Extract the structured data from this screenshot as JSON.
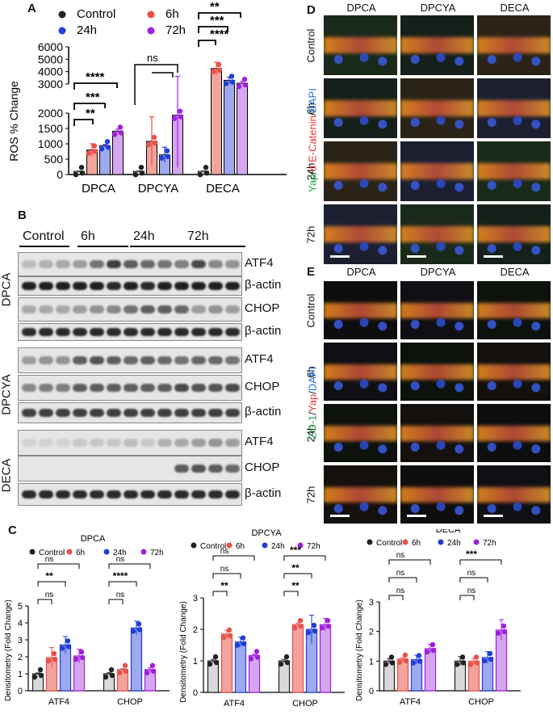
{
  "figure": {
    "panel_letters": {
      "a": "A",
      "b": "B",
      "c": "C",
      "d": "D",
      "e": "E"
    }
  },
  "panel_a": {
    "legend": [
      "Control",
      "6h",
      "24h",
      "72h"
    ],
    "ylabel": "ROS % Change",
    "groups": [
      "DPCA",
      "DPCYA",
      "DECA"
    ],
    "sig": {
      "dpca": [
        "**",
        "***",
        "****"
      ],
      "dpcya": [
        "ns"
      ],
      "deca": [
        "****",
        "***",
        "**"
      ]
    }
  },
  "panel_b": {
    "time_labels": [
      "Control",
      "6h",
      "24h",
      "72h"
    ],
    "row_labels": [
      "ATF4",
      "β-actin",
      "CHOP",
      "β-actin",
      "ATF4",
      "CHOP",
      "β-actin",
      "ATF4",
      "CHOP",
      "β-actin"
    ],
    "group_labels": [
      "DPCA",
      "DPCYA",
      "DECA"
    ]
  },
  "panel_c": {
    "titles": [
      "DPCA",
      "DPCYA",
      "DECA"
    ],
    "legend": [
      "Control",
      "6h",
      "24h",
      "72h"
    ],
    "ylabel": "Densitometry (Fold Change)",
    "sig": {
      "dpca": {
        "atf4": [
          "ns",
          "**",
          "ns"
        ],
        "chop": [
          "ns",
          "****",
          "ns"
        ]
      },
      "dpcya": {
        "atf4": [
          "**",
          "ns",
          "ns"
        ],
        "chop": [
          "**",
          "**",
          "***"
        ]
      },
      "deca": {
        "atf4": [
          "ns",
          "ns",
          "ns"
        ],
        "chop": [
          "ns",
          "ns",
          "***"
        ]
      }
    }
  },
  "panel_d": {
    "columns": [
      "DPCA",
      "DPCYA",
      "DECA"
    ],
    "rows": [
      "Control",
      "6h",
      "24h",
      "72h"
    ],
    "stain_label": [
      "Yap",
      "/",
      "α E-Catenin",
      "/",
      "DAPI"
    ],
    "stain_colors": [
      "#1aa34a",
      "#222222",
      "#e53935",
      "#222222",
      "#1e6fd9"
    ]
  },
  "panel_e": {
    "columns": [
      "DPCA",
      "DPCYA",
      "DECA"
    ],
    "rows": [
      "Control",
      "6h",
      "24h",
      "72h"
    ],
    "stain_label": [
      "ZO-1",
      "/",
      "Yap",
      "/",
      "DAPI"
    ],
    "stain_colors": [
      "#1aa34a",
      "#222222",
      "#e53935",
      "#222222",
      "#1e6fd9"
    ]
  },
  "colors": {
    "control": "#222222",
    "h6": "#e8504a",
    "h24": "#1f3fd6",
    "h72": "#a020e0",
    "bar_fill_control": "#d9d9d9",
    "bar_fill_6h": "#f2a39c",
    "bar_fill_24h": "#9ea9f0",
    "bar_fill_72h": "#d6a6f0"
  },
  "chart_data": [
    {
      "id": "A",
      "type": "bar",
      "categories": [
        "DPCA",
        "DPCYA",
        "DECA"
      ],
      "ylabel": "ROS % Change",
      "y_axis": "broken",
      "y_ticks_lower": [
        0,
        500,
        1000,
        1500,
        2000
      ],
      "y_ticks_upper": [
        3000,
        4000,
        5000,
        6000
      ],
      "series": [
        {
          "name": "Control",
          "values": [
            100,
            100,
            100
          ],
          "err": [
            10,
            10,
            10
          ]
        },
        {
          "name": "6h",
          "values": [
            800,
            1080,
            4250
          ],
          "err": [
            200,
            800,
            500
          ]
        },
        {
          "name": "24h",
          "values": [
            940,
            640,
            3300
          ],
          "err": [
            40,
            250,
            250
          ]
        },
        {
          "name": "72h",
          "values": [
            1410,
            1930,
            3060
          ],
          "err": [
            70,
            1700,
            150
          ]
        }
      ]
    },
    {
      "id": "C-DPCA",
      "type": "bar",
      "title": "DPCA",
      "categories": [
        "ATF4",
        "CHOP"
      ],
      "ylabel": "Densitometry (Fold Change)",
      "ylim": [
        0,
        5
      ],
      "series": [
        {
          "name": "Control",
          "values": [
            1.0,
            1.0
          ],
          "err": [
            0.05,
            0.06
          ]
        },
        {
          "name": "6h",
          "values": [
            1.95,
            1.25
          ],
          "err": [
            0.6,
            0.05
          ]
        },
        {
          "name": "24h",
          "values": [
            2.7,
            3.7
          ],
          "err": [
            0.5,
            0.4
          ]
        },
        {
          "name": "72h",
          "values": [
            2.05,
            1.25
          ],
          "err": [
            0.4,
            0.1
          ]
        }
      ]
    },
    {
      "id": "C-DPCYA",
      "type": "bar",
      "title": "DPCYA",
      "categories": [
        "ATF4",
        "CHOP"
      ],
      "ylabel": "Densitometry (Fold Change)",
      "ylim": [
        0,
        3
      ],
      "series": [
        {
          "name": "Control",
          "values": [
            1.0,
            1.0
          ],
          "err": [
            0.05,
            0.05
          ]
        },
        {
          "name": "6h",
          "values": [
            1.85,
            2.15
          ],
          "err": [
            0.12,
            0.05
          ]
        },
        {
          "name": "24h",
          "values": [
            1.6,
            2.0
          ],
          "err": [
            0.15,
            0.45
          ]
        },
        {
          "name": "72h",
          "values": [
            1.17,
            2.15
          ],
          "err": [
            0.04,
            0.2
          ]
        }
      ]
    },
    {
      "id": "C-DECA",
      "type": "bar",
      "title": "DECA",
      "categories": [
        "ATF4",
        "CHOP"
      ],
      "ylabel": "Densitometry (Fold Change)",
      "ylim": [
        0,
        3
      ],
      "series": [
        {
          "name": "Control",
          "values": [
            1.0,
            1.0
          ],
          "err": [
            0.08,
            0.15
          ]
        },
        {
          "name": "6h",
          "values": [
            1.07,
            1.0
          ],
          "err": [
            0.05,
            0.1
          ]
        },
        {
          "name": "24h",
          "values": [
            1.05,
            1.12
          ],
          "err": [
            0.15,
            0.2
          ]
        },
        {
          "name": "72h",
          "values": [
            1.42,
            2.05
          ],
          "err": [
            0.15,
            0.35
          ]
        }
      ]
    }
  ]
}
